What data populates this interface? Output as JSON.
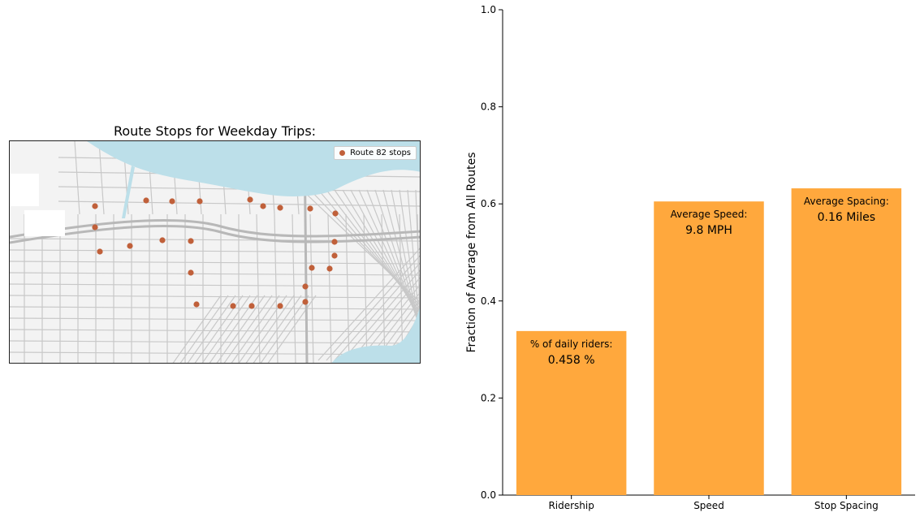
{
  "map": {
    "title": "Route Stops for Weekday Trips:",
    "legend_label": "Route 82 stops",
    "colors": {
      "stop": "#c0603a",
      "water": "#bcdfe9",
      "land": "#f3f3f3",
      "road": "#c8c8c8",
      "major_road": "#b8b8b8"
    }
  },
  "chart_data": {
    "type": "bar",
    "categories": [
      "Ridership",
      "Speed",
      "Stop Spacing"
    ],
    "values": [
      0.338,
      0.605,
      0.632
    ],
    "ylabel": "Fraction of Average from All Routes",
    "ylim": [
      0,
      1.0
    ],
    "yticks": [
      "0.0",
      "0.2",
      "0.4",
      "0.6",
      "0.8",
      "1.0"
    ],
    "bar_color": "#ffa83d",
    "annotations": [
      {
        "label": "% of daily riders:",
        "value": "0.458 %"
      },
      {
        "label": "Average Speed:",
        "value": "9.8 MPH"
      },
      {
        "label": "Average Spacing:",
        "value": "0.16 Miles"
      }
    ]
  }
}
